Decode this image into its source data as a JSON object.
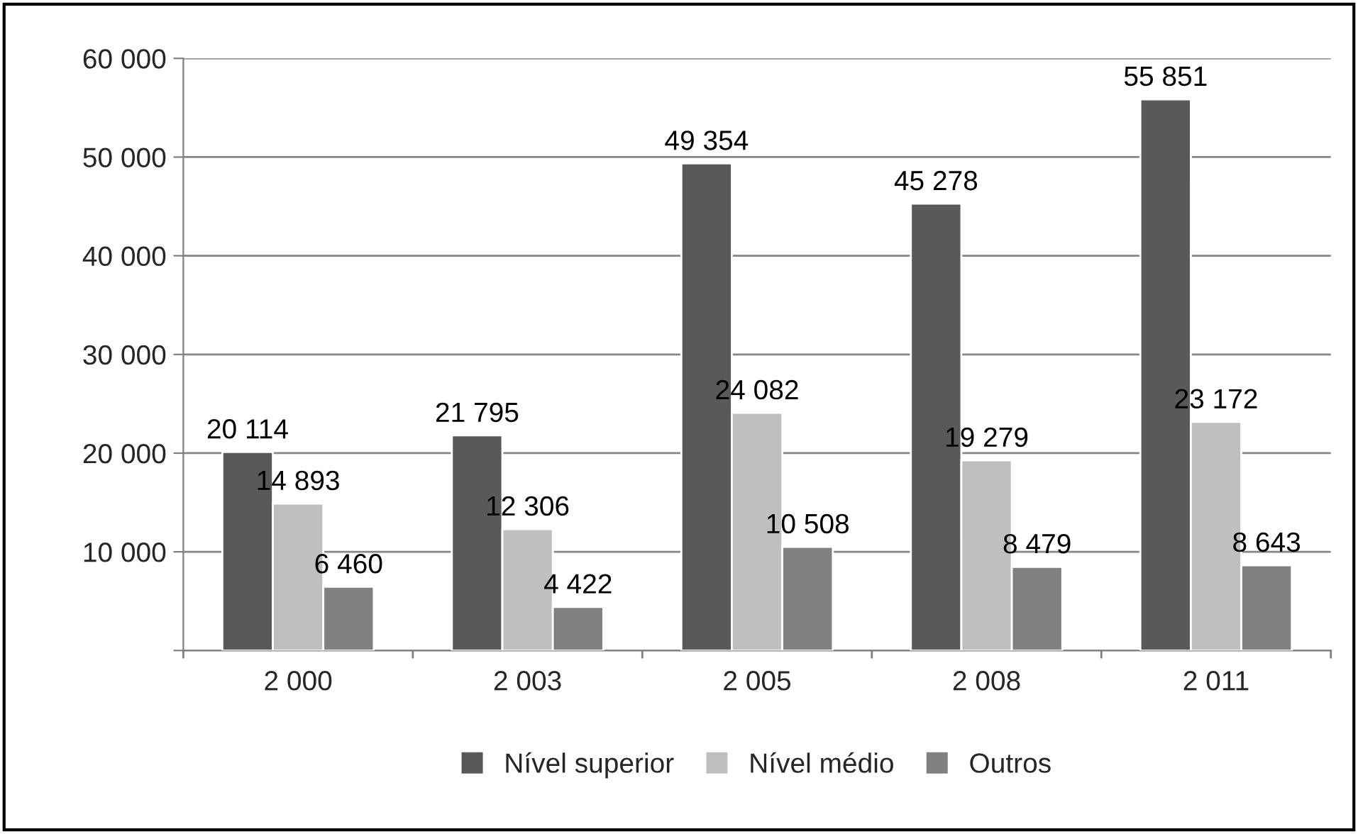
{
  "chart_data": {
    "type": "bar",
    "categories": [
      "2 000",
      "2 003",
      "2 005",
      "2 008",
      "2 011"
    ],
    "series": [
      {
        "name": "Nível superior",
        "color": "#595959",
        "values": [
          20114,
          21795,
          49354,
          45278,
          55851
        ],
        "value_labels": [
          "20 114",
          "21 795",
          "49 354",
          "45 278",
          "55 851"
        ]
      },
      {
        "name": "Nível médio",
        "color": "#bfbfbf",
        "values": [
          14893,
          12306,
          24082,
          19279,
          23172
        ],
        "value_labels": [
          "14 893",
          "12 306",
          "24 082",
          "19 279",
          "23 172"
        ]
      },
      {
        "name": "Outros",
        "color": "#808080",
        "values": [
          6460,
          4422,
          10508,
          8479,
          8643
        ],
        "value_labels": [
          "6 460",
          "4 422",
          "10 508",
          "8 479",
          "8 643"
        ]
      }
    ],
    "ylim": [
      0,
      60000
    ],
    "yticks": [
      {
        "value": 0,
        "label": null
      },
      {
        "value": 10000,
        "label": "10 000"
      },
      {
        "value": 20000,
        "label": "20 000"
      },
      {
        "value": 30000,
        "label": "30 000"
      },
      {
        "value": 40000,
        "label": "40 000"
      },
      {
        "value": 50000,
        "label": "50 000"
      },
      {
        "value": 60000,
        "label": "60 000"
      }
    ],
    "grid": "y",
    "legend": "bottom"
  }
}
